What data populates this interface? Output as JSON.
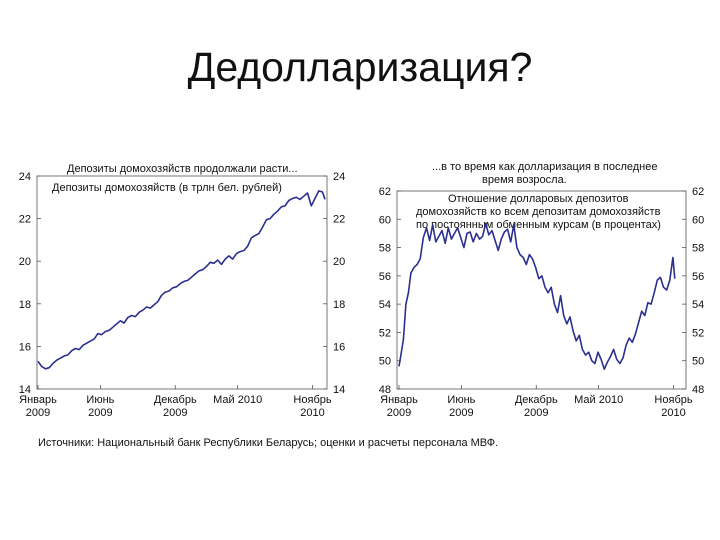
{
  "slide": {
    "title": "Дедолларизация?",
    "source": "Источники: Национальный банк Республики Беларусь; оценки и расчеты персонала МВФ."
  },
  "chart_data": [
    {
      "type": "line",
      "title": "Депозиты домохозяйств продолжали расти...",
      "subtitle": "Депозиты домохозяйств (в трлн бел. рублей)",
      "ylim": [
        14,
        24
      ],
      "yticks": [
        14,
        16,
        18,
        20,
        22,
        24
      ],
      "xlim": [
        0,
        23
      ],
      "xticks": [
        {
          "x": 0,
          "line1": "Январь",
          "line2": "2009"
        },
        {
          "x": 5,
          "line1": "Июнь",
          "line2": "2009"
        },
        {
          "x": 11,
          "line1": "Декабрь",
          "line2": "2009"
        },
        {
          "x": 16,
          "line1": "Май 2010",
          "line2": ""
        },
        {
          "x": 22,
          "line1": "Ноябрь",
          "line2": "2010"
        }
      ],
      "grid": false,
      "color": "#2b2f8f",
      "series": [
        {
          "values": [
            [
              0,
              15.3
            ],
            [
              0.3,
              15.05
            ],
            [
              0.6,
              14.95
            ],
            [
              0.9,
              15.0
            ],
            [
              1.2,
              15.2
            ],
            [
              1.5,
              15.35
            ],
            [
              1.8,
              15.45
            ],
            [
              2.1,
              15.55
            ],
            [
              2.4,
              15.6
            ],
            [
              2.7,
              15.8
            ],
            [
              3.0,
              15.9
            ],
            [
              3.3,
              15.85
            ],
            [
              3.6,
              16.05
            ],
            [
              3.9,
              16.15
            ],
            [
              4.2,
              16.25
            ],
            [
              4.5,
              16.35
            ],
            [
              4.8,
              16.6
            ],
            [
              5.1,
              16.55
            ],
            [
              5.4,
              16.7
            ],
            [
              5.7,
              16.75
            ],
            [
              6.0,
              16.9
            ],
            [
              6.3,
              17.05
            ],
            [
              6.6,
              17.2
            ],
            [
              6.9,
              17.1
            ],
            [
              7.2,
              17.35
            ],
            [
              7.5,
              17.45
            ],
            [
              7.8,
              17.4
            ],
            [
              8.1,
              17.6
            ],
            [
              8.4,
              17.7
            ],
            [
              8.7,
              17.85
            ],
            [
              9.0,
              17.8
            ],
            [
              9.3,
              17.95
            ],
            [
              9.6,
              18.1
            ],
            [
              9.9,
              18.4
            ],
            [
              10.2,
              18.55
            ],
            [
              10.5,
              18.6
            ],
            [
              10.8,
              18.75
            ],
            [
              11.1,
              18.8
            ],
            [
              11.4,
              18.95
            ],
            [
              11.7,
              19.05
            ],
            [
              12.0,
              19.1
            ],
            [
              12.3,
              19.25
            ],
            [
              12.6,
              19.4
            ],
            [
              12.9,
              19.55
            ],
            [
              13.2,
              19.6
            ],
            [
              13.5,
              19.75
            ],
            [
              13.8,
              19.95
            ],
            [
              14.1,
              19.9
            ],
            [
              14.4,
              20.05
            ],
            [
              14.7,
              19.85
            ],
            [
              15.0,
              20.1
            ],
            [
              15.3,
              20.25
            ],
            [
              15.6,
              20.1
            ],
            [
              15.9,
              20.35
            ],
            [
              16.2,
              20.45
            ],
            [
              16.5,
              20.5
            ],
            [
              16.8,
              20.7
            ],
            [
              17.1,
              21.1
            ],
            [
              17.4,
              21.2
            ],
            [
              17.7,
              21.3
            ],
            [
              18.0,
              21.6
            ],
            [
              18.3,
              21.95
            ],
            [
              18.6,
              22.0
            ],
            [
              18.9,
              22.2
            ],
            [
              19.2,
              22.35
            ],
            [
              19.5,
              22.55
            ],
            [
              19.8,
              22.6
            ],
            [
              20.1,
              22.85
            ],
            [
              20.4,
              22.95
            ],
            [
              20.7,
              23.0
            ],
            [
              21.0,
              22.9
            ],
            [
              21.3,
              23.05
            ],
            [
              21.6,
              23.2
            ],
            [
              21.9,
              22.6
            ],
            [
              22.2,
              22.95
            ],
            [
              22.5,
              23.3
            ],
            [
              22.8,
              23.25
            ],
            [
              23.0,
              22.9
            ]
          ]
        }
      ]
    },
    {
      "type": "line",
      "title": "...в то время как долларизация в последнее время возросла.",
      "subtitle": "Отношение долларовых депозитов домохозяйств ко всем депозитам домохозяйств по постоянным обменным курсам (в процентах)",
      "ylim": [
        48,
        62
      ],
      "yticks": [
        48,
        50,
        52,
        54,
        56,
        58,
        60,
        62
      ],
      "xlim": [
        0,
        23
      ],
      "xticks": [
        {
          "x": 0,
          "line1": "Январь",
          "line2": "2009"
        },
        {
          "x": 5,
          "line1": "Июнь",
          "line2": "2009"
        },
        {
          "x": 11,
          "line1": "Декабрь",
          "line2": "2009"
        },
        {
          "x": 16,
          "line1": "Май 2010",
          "line2": ""
        },
        {
          "x": 22,
          "line1": "Ноябрь",
          "line2": "2010"
        }
      ],
      "grid": false,
      "color": "#2b2f8f",
      "series": [
        {
          "values": [
            [
              0,
              49.6
            ],
            [
              0.15,
              50.4
            ],
            [
              0.35,
              51.5
            ],
            [
              0.55,
              54.0
            ],
            [
              0.75,
              54.8
            ],
            [
              0.95,
              56.2
            ],
            [
              1.2,
              56.6
            ],
            [
              1.45,
              56.8
            ],
            [
              1.7,
              57.2
            ],
            [
              1.95,
              58.7
            ],
            [
              2.2,
              59.4
            ],
            [
              2.45,
              58.5
            ],
            [
              2.7,
              59.6
            ],
            [
              2.95,
              58.4
            ],
            [
              3.2,
              58.8
            ],
            [
              3.45,
              59.2
            ],
            [
              3.7,
              58.3
            ],
            [
              3.95,
              59.4
            ],
            [
              4.2,
              58.6
            ],
            [
              4.45,
              59.0
            ],
            [
              4.7,
              59.4
            ],
            [
              4.95,
              58.7
            ],
            [
              5.2,
              58.0
            ],
            [
              5.45,
              59.0
            ],
            [
              5.7,
              59.1
            ],
            [
              5.95,
              58.4
            ],
            [
              6.2,
              59.0
            ],
            [
              6.45,
              58.6
            ],
            [
              6.7,
              58.8
            ],
            [
              6.95,
              59.7
            ],
            [
              7.2,
              58.9
            ],
            [
              7.45,
              59.2
            ],
            [
              7.7,
              58.5
            ],
            [
              7.95,
              57.8
            ],
            [
              8.2,
              58.6
            ],
            [
              8.45,
              59.1
            ],
            [
              8.7,
              59.3
            ],
            [
              8.95,
              58.4
            ],
            [
              9.2,
              59.6
            ],
            [
              9.45,
              58.0
            ],
            [
              9.7,
              57.5
            ],
            [
              9.95,
              57.3
            ],
            [
              10.2,
              56.8
            ],
            [
              10.45,
              57.5
            ],
            [
              10.7,
              57.2
            ],
            [
              10.95,
              56.6
            ],
            [
              11.2,
              55.8
            ],
            [
              11.45,
              56.0
            ],
            [
              11.7,
              55.2
            ],
            [
              11.95,
              54.8
            ],
            [
              12.2,
              55.2
            ],
            [
              12.45,
              54.0
            ],
            [
              12.7,
              53.4
            ],
            [
              12.95,
              54.6
            ],
            [
              13.2,
              53.2
            ],
            [
              13.45,
              52.6
            ],
            [
              13.7,
              53.1
            ],
            [
              13.95,
              52.1
            ],
            [
              14.2,
              51.4
            ],
            [
              14.45,
              51.8
            ],
            [
              14.7,
              50.8
            ],
            [
              14.95,
              50.4
            ],
            [
              15.2,
              50.6
            ],
            [
              15.45,
              50.0
            ],
            [
              15.7,
              49.8
            ],
            [
              15.95,
              50.6
            ],
            [
              16.2,
              50.1
            ],
            [
              16.45,
              49.4
            ],
            [
              16.7,
              49.9
            ],
            [
              16.95,
              50.3
            ],
            [
              17.2,
              50.8
            ],
            [
              17.45,
              50.1
            ],
            [
              17.7,
              49.8
            ],
            [
              17.95,
              50.2
            ],
            [
              18.2,
              51.1
            ],
            [
              18.45,
              51.6
            ],
            [
              18.7,
              51.3
            ],
            [
              18.95,
              51.9
            ],
            [
              19.2,
              52.7
            ],
            [
              19.45,
              53.5
            ],
            [
              19.7,
              53.2
            ],
            [
              19.95,
              54.1
            ],
            [
              20.2,
              54.0
            ],
            [
              20.45,
              54.8
            ],
            [
              20.7,
              55.7
            ],
            [
              20.95,
              55.9
            ],
            [
              21.2,
              55.2
            ],
            [
              21.45,
              55.0
            ],
            [
              21.7,
              55.7
            ],
            [
              21.95,
              57.3
            ],
            [
              22.1,
              55.8
            ]
          ]
        }
      ]
    }
  ]
}
